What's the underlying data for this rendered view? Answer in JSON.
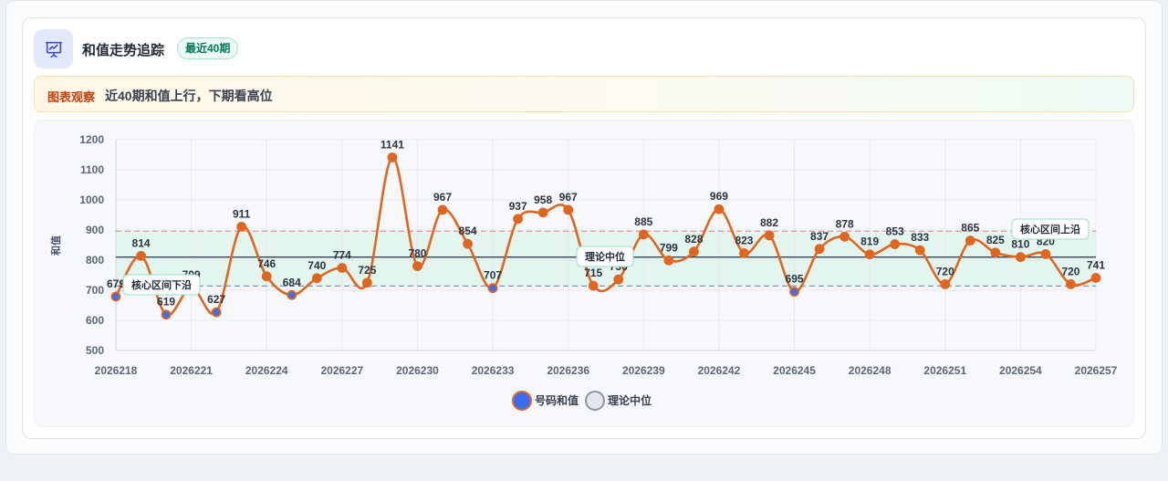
{
  "header": {
    "title": "和值走势追踪",
    "badge": "最近40期",
    "icon": "presentation-chart-icon"
  },
  "observation": {
    "label": "图表观察",
    "text": "近40期和值上行，下期看高位"
  },
  "colors": {
    "line": "#e0661f",
    "point_normal": "#e0661f",
    "point_low": "#4b6cd6",
    "band_fill": "#e3f5ef",
    "upper_line": "#e58a8a",
    "lower_line": "#7b93c9",
    "median_line": "#334155",
    "accent": "#3b6cf2"
  },
  "chart_data": {
    "type": "line",
    "ylabel": "和值",
    "xlabel": "",
    "ylim": [
      500,
      1200
    ],
    "yticks": [
      500,
      600,
      700,
      800,
      900,
      1000,
      1100,
      1200
    ],
    "xticks": [
      "2026218",
      "2026221",
      "2026224",
      "2026227",
      "2026230",
      "2026233",
      "2026236",
      "2026239",
      "2026242",
      "2026245",
      "2026248",
      "2026251",
      "2026254",
      "2026257"
    ],
    "x": [
      "2026218",
      "2026219",
      "2026220",
      "2026221",
      "2026222",
      "2026223",
      "2026224",
      "2026225",
      "2026226",
      "2026227",
      "2026228",
      "2026229",
      "2026230",
      "2026231",
      "2026232",
      "2026233",
      "2026234",
      "2026235",
      "2026236",
      "2026237",
      "2026238",
      "2026239",
      "2026240",
      "2026241",
      "2026242",
      "2026243",
      "2026244",
      "2026245",
      "2026246",
      "2026247",
      "2026248",
      "2026249",
      "2026250",
      "2026251",
      "2026252",
      "2026253",
      "2026254",
      "2026255",
      "2026256",
      "2026257"
    ],
    "series": [
      {
        "name": "号码和值",
        "values": [
          679,
          814,
          619,
          709,
          627,
          911,
          746,
          684,
          740,
          774,
          725,
          1141,
          780,
          967,
          854,
          707,
          937,
          958,
          967,
          715,
          736,
          885,
          799,
          828,
          969,
          823,
          882,
          695,
          837,
          878,
          819,
          853,
          833,
          720,
          865,
          825,
          810,
          820,
          720,
          741
        ]
      }
    ],
    "reference_lines": [
      {
        "name": "核心区间上沿",
        "value": 896,
        "style": "dashed"
      },
      {
        "name": "理论中位",
        "value": 810,
        "style": "solid"
      },
      {
        "name": "核心区间下沿",
        "value": 714,
        "style": "dashed"
      }
    ],
    "legend": [
      "号码和值",
      "理论中位"
    ],
    "legend_position": "bottom-center",
    "grid": true
  }
}
